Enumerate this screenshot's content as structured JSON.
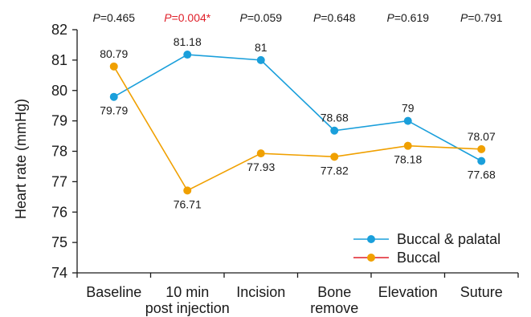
{
  "chart_data": {
    "type": "line",
    "title": "",
    "xlabel": "",
    "ylabel": "Heart rate (mmHg)",
    "ylim": [
      74,
      82
    ],
    "yticks": [
      "74",
      "75",
      "76",
      "77",
      "78",
      "79",
      "80",
      "81",
      "82"
    ],
    "categories": [
      [
        "Baseline"
      ],
      [
        "10 min",
        "post injection"
      ],
      [
        "Incision"
      ],
      [
        "Bone",
        "remove"
      ],
      [
        "Elevation"
      ],
      [
        "Suture"
      ]
    ],
    "p_values": [
      {
        "label": "P",
        "value": "=0.465",
        "significant": false
      },
      {
        "label": "P",
        "value": "=0.004*",
        "significant": true
      },
      {
        "label": "P",
        "value": "=0.059",
        "significant": false
      },
      {
        "label": "P",
        "value": "=0.648",
        "significant": false
      },
      {
        "label": "P",
        "value": "=0.619",
        "significant": false
      },
      {
        "label": "P",
        "value": "=0.791",
        "significant": false
      }
    ],
    "series": [
      {
        "name": "Buccal & palatal",
        "color": "#1a9fdb",
        "values": [
          79.79,
          81.18,
          81.0,
          78.68,
          79.0,
          77.68
        ],
        "labels": [
          "79.79",
          "81.18",
          "81",
          "78.68",
          "79",
          "77.68"
        ],
        "label_pos": [
          "below",
          "above",
          "above",
          "above",
          "above",
          "below"
        ]
      },
      {
        "name": "Buccal",
        "color": "#f0a000",
        "values": [
          80.79,
          76.71,
          77.93,
          77.82,
          78.18,
          78.07
        ],
        "labels": [
          "80.79",
          "76.71",
          "77.93",
          "77.82",
          "78.18",
          "78.07"
        ],
        "label_pos": [
          "above",
          "below",
          "below",
          "below",
          "below",
          "above"
        ]
      }
    ],
    "legend": {
      "position": "bottom-right",
      "entries": [
        {
          "label": "Buccal & palatal",
          "line_color": "#1a9fdb",
          "marker_color": "#1a9fdb"
        },
        {
          "label": "Buccal",
          "line_color": "#e0202a",
          "marker_color": "#f0a000"
        }
      ]
    },
    "significant_color": "#e0202a",
    "grid": false
  }
}
